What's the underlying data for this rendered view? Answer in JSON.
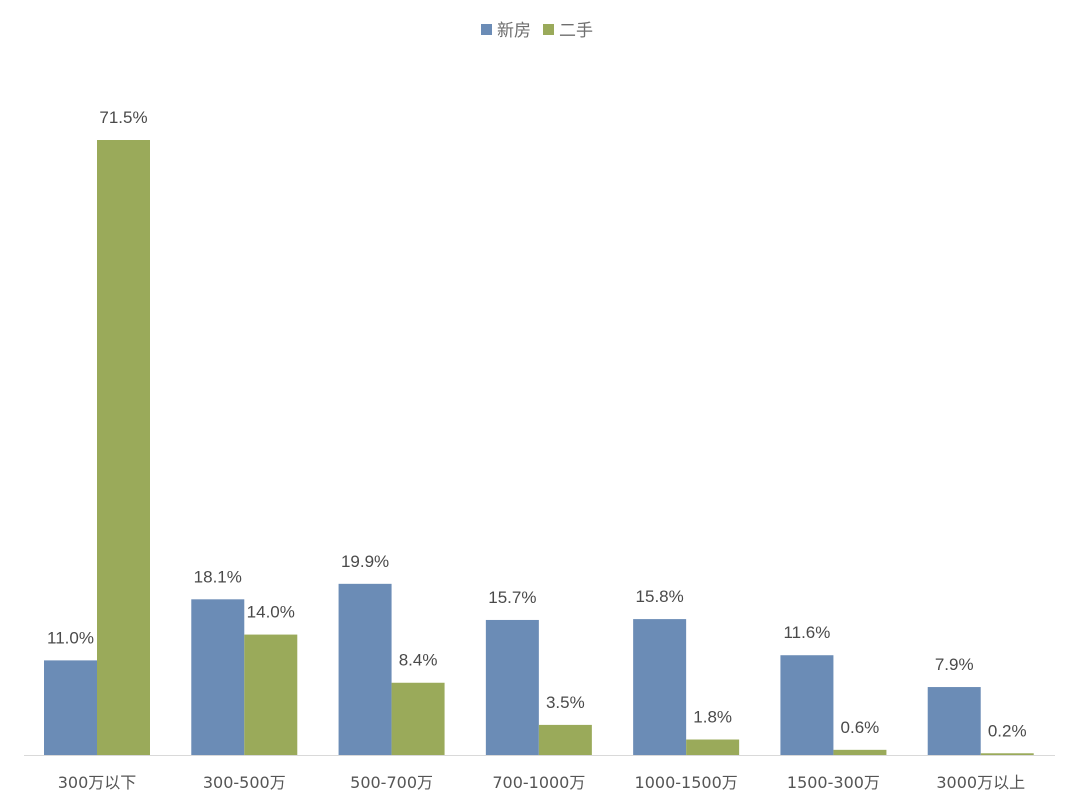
{
  "chart_data": {
    "type": "bar",
    "categories": [
      "300万以下",
      "300-500万",
      "500-700万",
      "700-1000万",
      "1000-1500万",
      "1500-300万",
      "3000万以上"
    ],
    "series": [
      {
        "name": "新房",
        "color": "#6b8cb6",
        "values": [
          11.0,
          18.1,
          19.9,
          15.7,
          15.8,
          11.6,
          7.9
        ],
        "labels": [
          "11.0%",
          "18.1%",
          "19.9%",
          "15.7%",
          "15.8%",
          "11.6%",
          "7.9%"
        ]
      },
      {
        "name": "二手",
        "color": "#9aaa5a",
        "values": [
          71.5,
          14.0,
          8.4,
          3.5,
          1.8,
          0.6,
          0.2
        ],
        "labels": [
          "71.5%",
          "14.0%",
          "8.4%",
          "3.5%",
          "1.8%",
          "0.6%",
          "0.2%"
        ]
      }
    ],
    "title": "",
    "xlabel": "",
    "ylabel": "",
    "ylim": [
      0,
      72
    ],
    "grid": false,
    "legend": "top-center"
  }
}
